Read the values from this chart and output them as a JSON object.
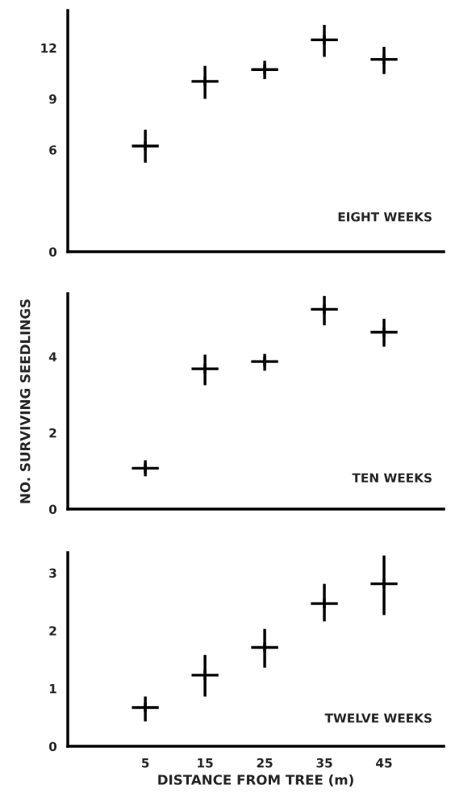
{
  "chart_data": [
    {
      "type": "scatter",
      "x": [
        5,
        15,
        25,
        35,
        45
      ],
      "xlim": [
        -8,
        55
      ],
      "xticks": [
        5,
        15,
        25,
        35,
        45
      ],
      "ylim": [
        0,
        14.2
      ],
      "yticks": [
        0,
        6,
        9,
        12
      ],
      "tick_labels": "y",
      "marker": "cross",
      "grid": false,
      "annotations": [
        "EIGHT WEEKS"
      ],
      "values": [
        6.22,
        10.03,
        10.72,
        12.47,
        11.32
      ],
      "color": "#000000",
      "errors": [
        [
          5.24,
          7.18
        ],
        [
          9.0,
          10.94
        ],
        [
          10.16,
          11.24
        ],
        [
          11.47,
          13.35
        ],
        [
          10.46,
          12.06
        ]
      ]
    },
    {
      "type": "scatter",
      "x": [
        5,
        15,
        25,
        35,
        45
      ],
      "xlim": [
        -8,
        55
      ],
      "xticks": [
        5,
        15,
        25,
        35,
        45
      ],
      "ylim": [
        0,
        5.65
      ],
      "yticks": [
        0,
        2,
        4
      ],
      "tick_labels": "y",
      "marker": "cross",
      "grid": false,
      "ylabel": "NO. SURVIVING SEEDLINGS",
      "annotations": [
        "TEN WEEKS"
      ],
      "values": [
        1.07,
        3.68,
        3.87,
        5.24,
        4.64
      ],
      "color": "#000000",
      "errors": [
        [
          0.86,
          1.28
        ],
        [
          3.25,
          4.05
        ],
        [
          3.63,
          4.07
        ],
        [
          4.82,
          5.59
        ],
        [
          4.26,
          4.99
        ]
      ]
    },
    {
      "type": "scatter",
      "x": [
        5,
        15,
        25,
        35,
        45
      ],
      "xlim": [
        -8,
        55
      ],
      "xticks": [
        5,
        15,
        25,
        35,
        45
      ],
      "ylim": [
        0,
        3.35
      ],
      "yticks": [
        0,
        1,
        2,
        3
      ],
      "marker": "cross",
      "grid": false,
      "xlabel": "DISTANCE FROM TREE (m)",
      "annotations": [
        "TWELVE WEEKS"
      ],
      "values": [
        0.67,
        1.23,
        1.71,
        2.47,
        2.81
      ],
      "color": "#000000",
      "errors": [
        [
          0.43,
          0.86
        ],
        [
          0.86,
          1.58
        ],
        [
          1.36,
          2.03
        ],
        [
          2.16,
          2.81
        ],
        [
          2.27,
          3.3
        ]
      ]
    }
  ]
}
